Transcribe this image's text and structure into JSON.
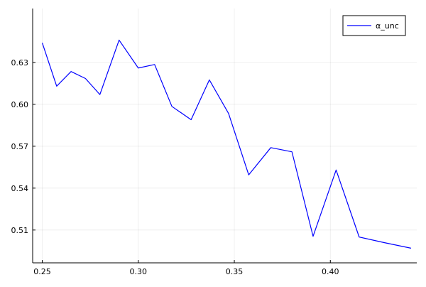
{
  "chart_data": {
    "type": "line",
    "title": "",
    "xlabel": "",
    "ylabel": "",
    "xlim": [
      0.245,
      0.445
    ],
    "ylim": [
      0.4865,
      0.6686
    ],
    "x_ticks": [
      {
        "value": 0.25,
        "label": "0.25"
      },
      {
        "value": 0.3,
        "label": "0.30"
      },
      {
        "value": 0.35,
        "label": "0.35"
      },
      {
        "value": 0.4,
        "label": "0.40"
      }
    ],
    "y_ticks": [
      {
        "value": 0.51,
        "label": "0.51"
      },
      {
        "value": 0.54,
        "label": "0.54"
      },
      {
        "value": 0.57,
        "label": "0.57"
      },
      {
        "value": 0.6,
        "label": "0.60"
      },
      {
        "value": 0.63,
        "label": "0.63"
      }
    ],
    "grid": true,
    "legend_position": "top-right",
    "series": [
      {
        "name": "α_unc",
        "color": "#0000ff",
        "x": [
          0.25,
          0.2575,
          0.265,
          0.2725,
          0.28,
          0.29,
          0.3,
          0.3085,
          0.3175,
          0.3275,
          0.337,
          0.347,
          0.3575,
          0.369,
          0.38,
          0.391,
          0.403,
          0.415,
          0.428,
          0.442
        ],
        "y": [
          0.644,
          0.613,
          0.6235,
          0.6185,
          0.607,
          0.646,
          0.626,
          0.6285,
          0.5985,
          0.589,
          0.6175,
          0.5935,
          0.5495,
          0.569,
          0.566,
          0.5055,
          0.553,
          0.505,
          0.501,
          0.497
        ]
      }
    ]
  }
}
